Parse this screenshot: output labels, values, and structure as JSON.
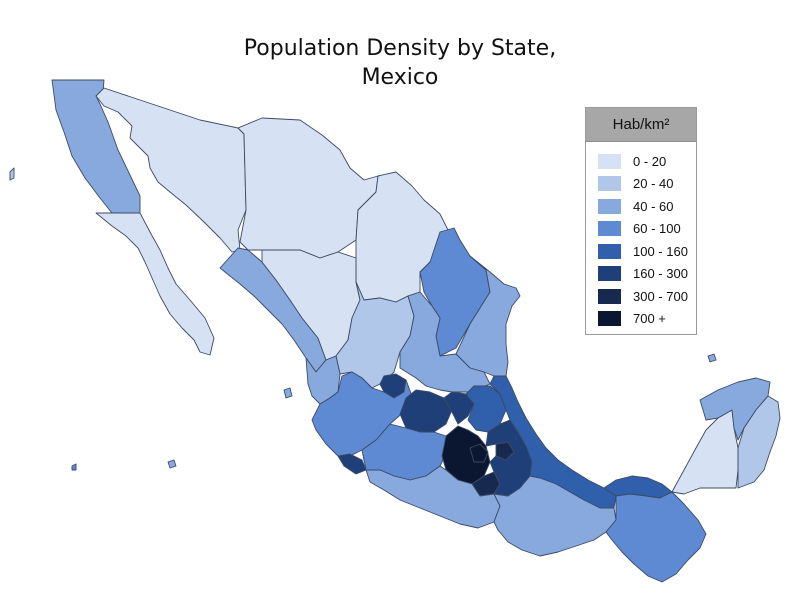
{
  "title_line1": "Population Density by State,",
  "title_line2": "Mexico",
  "legend": {
    "header": "Hab/km²",
    "classes": [
      {
        "label": "0 - 20",
        "color": "#d6e2f4"
      },
      {
        "label": "20 - 40",
        "color": "#b0c7ea"
      },
      {
        "label": "40 - 60",
        "color": "#87a9de"
      },
      {
        "label": "60 - 100",
        "color": "#5e8ad4"
      },
      {
        "label": "100 - 160",
        "color": "#3060ac"
      },
      {
        "label": "160 - 300",
        "color": "#1f3f78"
      },
      {
        "label": "300 - 700",
        "color": "#17294f"
      },
      {
        "label": "700 +",
        "color": "#0b1630"
      }
    ]
  },
  "regions": [
    {
      "name": "baja-california",
      "class": 2
    },
    {
      "name": "baja-california-sur",
      "class": 0
    },
    {
      "name": "sonora",
      "class": 0
    },
    {
      "name": "chihuahua",
      "class": 0
    },
    {
      "name": "coahuila",
      "class": 0
    },
    {
      "name": "nuevo-leon",
      "class": 3
    },
    {
      "name": "tamaulipas",
      "class": 2
    },
    {
      "name": "sinaloa",
      "class": 2
    },
    {
      "name": "durango",
      "class": 0
    },
    {
      "name": "zacatecas",
      "class": 1
    },
    {
      "name": "san-luis-potosi",
      "class": 2
    },
    {
      "name": "nayarit",
      "class": 2
    },
    {
      "name": "aguascalientes",
      "class": 5
    },
    {
      "name": "jalisco",
      "class": 3
    },
    {
      "name": "guanajuato",
      "class": 5
    },
    {
      "name": "queretaro",
      "class": 5
    },
    {
      "name": "hidalgo",
      "class": 4
    },
    {
      "name": "colima",
      "class": 5
    },
    {
      "name": "michoacan",
      "class": 3
    },
    {
      "name": "mexico-state",
      "class": 7
    },
    {
      "name": "cdmx",
      "class": 7
    },
    {
      "name": "morelos",
      "class": 6
    },
    {
      "name": "tlaxcala",
      "class": 6
    },
    {
      "name": "puebla",
      "class": 5
    },
    {
      "name": "veracruz",
      "class": 4
    },
    {
      "name": "guerrero",
      "class": 2
    },
    {
      "name": "oaxaca",
      "class": 2
    },
    {
      "name": "tabasco",
      "class": 4
    },
    {
      "name": "chiapas",
      "class": 3
    },
    {
      "name": "campeche",
      "class": 0
    },
    {
      "name": "yucatan",
      "class": 2
    },
    {
      "name": "quintana-roo",
      "class": 1
    }
  ]
}
